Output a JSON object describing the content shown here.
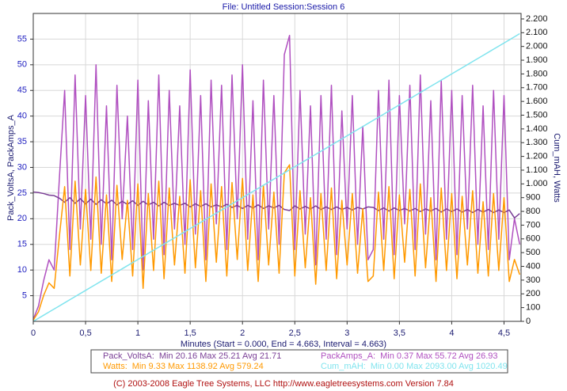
{
  "chart_data": {
    "type": "line",
    "title": "File: Untitled   Session:Session 6",
    "xlabel": "Minutes (Start = 0.000,  End = 4.663,  Interval =  4.663)",
    "ylabel": "Pack_VoltsA, PackAmps_A",
    "y2label": "Cum_mAH, Watts",
    "footer": "(C) 2003-2008 Eagle Tree Systems, LLC     http://www.eagletreesystems.com     Version 7.84",
    "grid": true,
    "xlim": [
      0,
      4.663
    ],
    "ylim": [
      0,
      60
    ],
    "y2lim": [
      0,
      2240
    ],
    "xticks": [
      0,
      {
        "value": 0.5,
        "label": "0,5"
      },
      1,
      {
        "value": 1.5,
        "label": "1,5"
      },
      2,
      {
        "value": 2.5,
        "label": "2,5"
      },
      3,
      {
        "value": 3.5,
        "label": "3,5"
      },
      4,
      {
        "value": 4.5,
        "label": "4,5"
      }
    ],
    "yticks": [
      5,
      10,
      15,
      20,
      25,
      30,
      35,
      40,
      45,
      50,
      55
    ],
    "y2ticks": [
      0,
      100,
      200,
      300,
      400,
      500,
      600,
      700,
      800,
      900,
      {
        "value": 1000,
        "label": "1.000"
      },
      {
        "value": 1100,
        "label": "1.100"
      },
      {
        "value": 1200,
        "label": "1.200"
      },
      {
        "value": 1300,
        "label": "1.300"
      },
      {
        "value": 1400,
        "label": "1.400"
      },
      {
        "value": 1500,
        "label": "1.500"
      },
      {
        "value": 1600,
        "label": "1.600"
      },
      {
        "value": 1700,
        "label": "1.700"
      },
      {
        "value": 1800,
        "label": "1.800"
      },
      {
        "value": 1900,
        "label": "1.900"
      },
      {
        "value": 2000,
        "label": "2.000"
      },
      {
        "value": 2100,
        "label": "2.100"
      },
      {
        "value": 2200,
        "label": "2.200"
      }
    ],
    "x": [
      0,
      0.05,
      0.1,
      0.15,
      0.2,
      0.25,
      0.3,
      0.35,
      0.4,
      0.45,
      0.5,
      0.55,
      0.6,
      0.65,
      0.7,
      0.75,
      0.8,
      0.85,
      0.9,
      0.95,
      1,
      1.05,
      1.1,
      1.15,
      1.2,
      1.25,
      1.3,
      1.35,
      1.4,
      1.45,
      1.5,
      1.55,
      1.6,
      1.65,
      1.7,
      1.75,
      1.8,
      1.85,
      1.9,
      1.95,
      2,
      2.05,
      2.1,
      2.15,
      2.2,
      2.25,
      2.3,
      2.35,
      2.4,
      2.45,
      2.5,
      2.55,
      2.6,
      2.65,
      2.7,
      2.75,
      2.8,
      2.85,
      2.9,
      2.95,
      3,
      3.05,
      3.1,
      3.15,
      3.2,
      3.25,
      3.3,
      3.35,
      3.4,
      3.45,
      3.5,
      3.55,
      3.6,
      3.65,
      3.7,
      3.75,
      3.8,
      3.85,
      3.9,
      3.95,
      4,
      4.05,
      4.1,
      4.15,
      4.2,
      4.25,
      4.3,
      4.35,
      4.4,
      4.45,
      4.5,
      4.55,
      4.6,
      4.65
    ],
    "series": [
      {
        "name": "PackAmps_A:",
        "stats": "Min 0.37    Max 55.72    Avg 26.93",
        "color": "#b050c0",
        "axis": "y",
        "values": [
          0.37,
          3,
          8,
          12,
          10,
          28,
          45,
          14,
          48,
          18,
          44,
          16,
          50,
          15,
          42,
          12,
          46,
          20,
          40,
          14,
          47,
          10,
          43,
          16,
          48,
          13,
          45,
          18,
          42,
          15,
          49,
          17,
          44,
          12,
          47,
          19,
          46,
          14,
          48,
          20,
          50,
          16,
          43,
          12,
          47,
          18,
          44,
          15,
          52,
          55.72,
          14,
          45,
          17,
          42,
          11,
          44,
          16,
          46,
          13,
          41,
          18,
          44,
          15,
          38,
          12,
          14,
          45,
          16,
          47,
          13,
          44,
          19,
          46,
          14,
          48,
          17,
          43,
          12,
          47,
          16,
          45,
          13,
          44,
          18,
          46,
          15,
          42,
          14,
          45,
          16,
          44,
          12,
          20,
          15
        ]
      },
      {
        "name": "Pack_VoltsA:",
        "stats": "Min 20.16    Max 25.21    Avg 21.71",
        "color": "#7a3f96",
        "axis": "y",
        "values": [
          25.21,
          25.1,
          24.9,
          24.6,
          24.5,
          24.0,
          23.2,
          24.1,
          23.0,
          23.9,
          22.9,
          23.8,
          22.8,
          23.7,
          22.9,
          23.6,
          22.7,
          23.4,
          22.8,
          23.5,
          22.6,
          23.4,
          22.7,
          23.2,
          22.5,
          23.2,
          22.6,
          23.0,
          22.6,
          23.0,
          22.3,
          22.9,
          22.4,
          22.9,
          22.3,
          22.7,
          22.3,
          22.8,
          22.2,
          22.6,
          22.0,
          22.6,
          22.1,
          22.7,
          22.0,
          22.5,
          22.1,
          22.6,
          21.8,
          21.6,
          22.5,
          21.9,
          22.4,
          21.9,
          22.5,
          21.8,
          22.3,
          21.8,
          22.3,
          21.8,
          22.2,
          21.7,
          22.2,
          21.9,
          22.3,
          22.2,
          21.6,
          22.1,
          21.5,
          22.1,
          21.6,
          22.0,
          21.5,
          22.0,
          21.4,
          21.9,
          21.5,
          22.0,
          21.3,
          21.9,
          21.4,
          21.9,
          21.3,
          21.8,
          21.2,
          21.8,
          21.3,
          21.8,
          21.2,
          21.7,
          21.2,
          21.7,
          20.16,
          21.0
        ]
      },
      {
        "name": "Watts:",
        "stats": "Min 9.33    Max 1138.92    Avg 579.24",
        "color": "#ff9900",
        "axis": "y2",
        "values": [
          9.33,
          70,
          190,
          280,
          240,
          620,
          980,
          330,
          1020,
          410,
          960,
          370,
          1050,
          350,
          920,
          290,
          990,
          450,
          880,
          330,
          1000,
          240,
          930,
          370,
          1020,
          310,
          970,
          410,
          910,
          350,
          1030,
          390,
          950,
          290,
          1000,
          430,
          980,
          330,
          1010,
          450,
          1040,
          370,
          920,
          290,
          990,
          410,
          940,
          350,
          1080,
          1138.92,
          330,
          950,
          390,
          900,
          270,
          930,
          370,
          970,
          310,
          880,
          410,
          930,
          350,
          820,
          290,
          330,
          940,
          370,
          980,
          310,
          920,
          430,
          960,
          330,
          1000,
          390,
          900,
          290,
          970,
          370,
          930,
          310,
          910,
          410,
          950,
          350,
          870,
          330,
          930,
          370,
          900,
          290,
          450,
          340
        ]
      },
      {
        "name": "Cum_mAH:",
        "stats": "Min 0.00    Max 2093.00    Avg 1020.49",
        "color": "#80e4ee",
        "axis": "y2",
        "values": [
          0,
          22.5,
          45,
          67.5,
          90,
          112.5,
          135,
          157.5,
          180,
          202.5,
          225,
          247.5,
          270,
          292.5,
          315,
          337.5,
          360,
          382.5,
          405,
          427.5,
          450,
          472.5,
          495,
          517.5,
          540,
          562.5,
          585,
          607.5,
          630,
          652.5,
          675,
          697.5,
          720,
          742.5,
          765,
          787.5,
          810,
          832.5,
          855,
          877.5,
          900,
          922.5,
          945,
          967.5,
          990,
          1012.5,
          1035,
          1057.5,
          1080,
          1102.5,
          1125,
          1147.5,
          1170,
          1192.5,
          1215,
          1237.5,
          1260,
          1282.5,
          1305,
          1327.5,
          1350,
          1372.5,
          1395,
          1417.5,
          1440,
          1462.5,
          1485,
          1507.5,
          1530,
          1552.5,
          1575,
          1597.5,
          1620,
          1642.5,
          1665,
          1687.5,
          1710,
          1732.5,
          1755,
          1777.5,
          1800,
          1822.5,
          1845,
          1867.5,
          1890,
          1912.5,
          1935,
          1957.5,
          1980,
          2002.5,
          2025,
          2047.5,
          2070,
          2093
        ]
      }
    ]
  }
}
